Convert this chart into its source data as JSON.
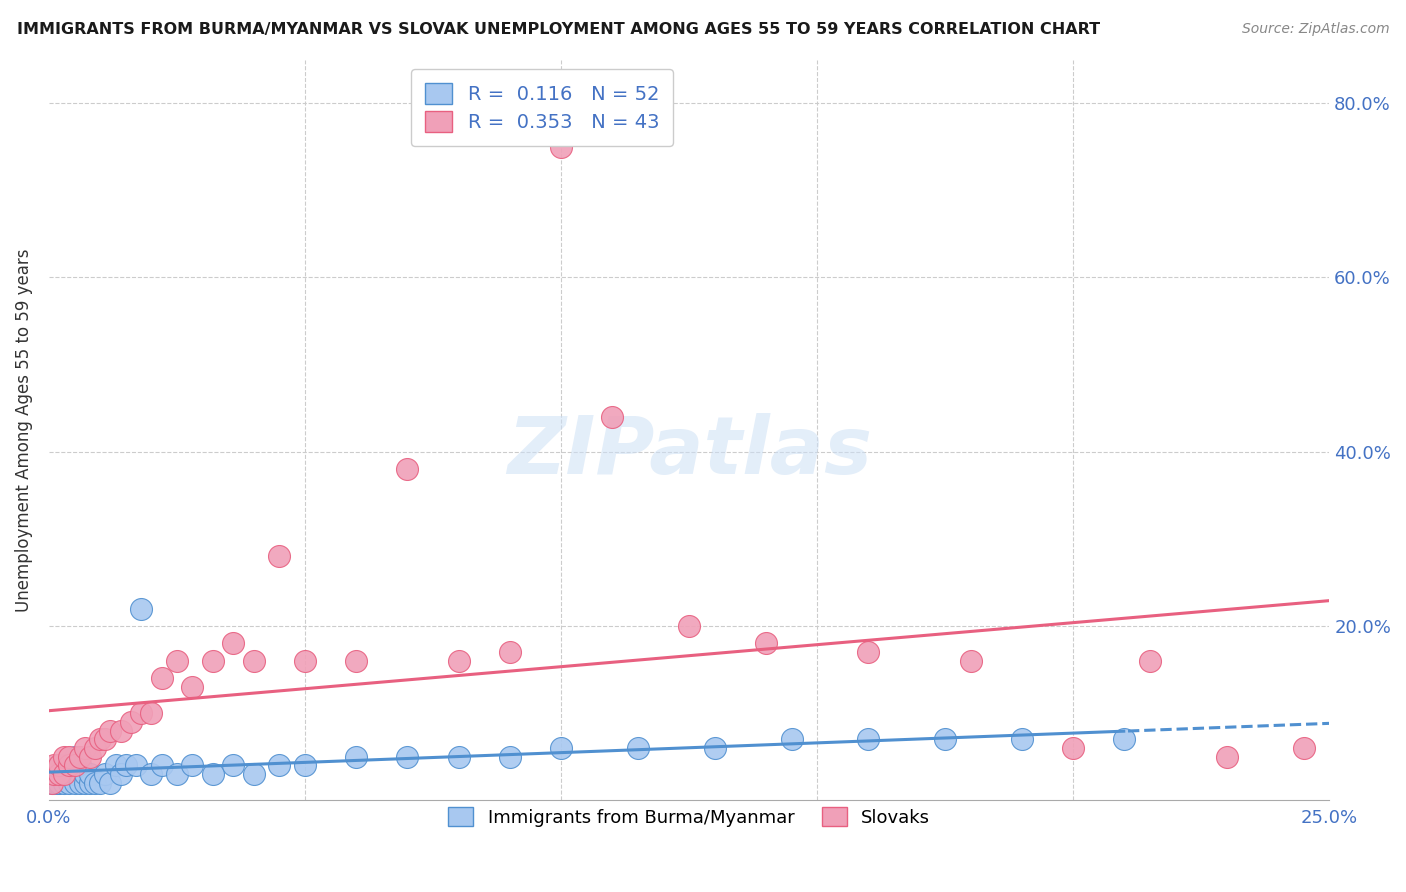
{
  "title": "IMMIGRANTS FROM BURMA/MYANMAR VS SLOVAK UNEMPLOYMENT AMONG AGES 55 TO 59 YEARS CORRELATION CHART",
  "source": "Source: ZipAtlas.com",
  "ylabel": "Unemployment Among Ages 55 to 59 years",
  "xlim": [
    0.0,
    0.25
  ],
  "ylim": [
    0.0,
    0.85
  ],
  "color_blue": "#a8c8f0",
  "color_pink": "#f0a0b8",
  "line_blue": "#5090d0",
  "line_pink": "#e86080",
  "legend_R_blue": "0.116",
  "legend_N_blue": "52",
  "legend_R_pink": "0.353",
  "legend_N_pink": "43",
  "legend_label_blue": "Immigrants from Burma/Myanmar",
  "legend_label_pink": "Slovaks",
  "watermark": "ZIPatlas",
  "blue_x": [
    0.0005,
    0.001,
    0.001,
    0.0015,
    0.002,
    0.002,
    0.002,
    0.003,
    0.003,
    0.003,
    0.004,
    0.004,
    0.004,
    0.005,
    0.005,
    0.005,
    0.006,
    0.006,
    0.007,
    0.007,
    0.008,
    0.008,
    0.009,
    0.01,
    0.011,
    0.012,
    0.013,
    0.014,
    0.015,
    0.017,
    0.018,
    0.02,
    0.022,
    0.025,
    0.028,
    0.032,
    0.036,
    0.04,
    0.045,
    0.05,
    0.06,
    0.07,
    0.08,
    0.09,
    0.1,
    0.115,
    0.13,
    0.145,
    0.16,
    0.175,
    0.19,
    0.21
  ],
  "blue_y": [
    0.02,
    0.02,
    0.03,
    0.02,
    0.02,
    0.03,
    0.04,
    0.02,
    0.03,
    0.04,
    0.02,
    0.03,
    0.04,
    0.02,
    0.03,
    0.05,
    0.02,
    0.04,
    0.02,
    0.03,
    0.02,
    0.03,
    0.02,
    0.02,
    0.03,
    0.02,
    0.04,
    0.03,
    0.04,
    0.04,
    0.22,
    0.03,
    0.04,
    0.03,
    0.04,
    0.03,
    0.04,
    0.03,
    0.04,
    0.04,
    0.05,
    0.05,
    0.05,
    0.05,
    0.06,
    0.06,
    0.06,
    0.07,
    0.07,
    0.07,
    0.07,
    0.07
  ],
  "pink_x": [
    0.0005,
    0.001,
    0.001,
    0.002,
    0.002,
    0.003,
    0.003,
    0.004,
    0.004,
    0.005,
    0.006,
    0.007,
    0.008,
    0.009,
    0.01,
    0.011,
    0.012,
    0.014,
    0.016,
    0.018,
    0.02,
    0.022,
    0.025,
    0.028,
    0.032,
    0.036,
    0.04,
    0.045,
    0.05,
    0.06,
    0.07,
    0.08,
    0.09,
    0.1,
    0.11,
    0.125,
    0.14,
    0.16,
    0.18,
    0.2,
    0.215,
    0.23,
    0.245
  ],
  "pink_y": [
    0.02,
    0.03,
    0.04,
    0.03,
    0.04,
    0.03,
    0.05,
    0.04,
    0.05,
    0.04,
    0.05,
    0.06,
    0.05,
    0.06,
    0.07,
    0.07,
    0.08,
    0.08,
    0.09,
    0.1,
    0.1,
    0.14,
    0.16,
    0.13,
    0.16,
    0.18,
    0.16,
    0.28,
    0.16,
    0.16,
    0.38,
    0.16,
    0.17,
    0.75,
    0.44,
    0.2,
    0.18,
    0.17,
    0.16,
    0.06,
    0.16,
    0.05,
    0.06
  ]
}
